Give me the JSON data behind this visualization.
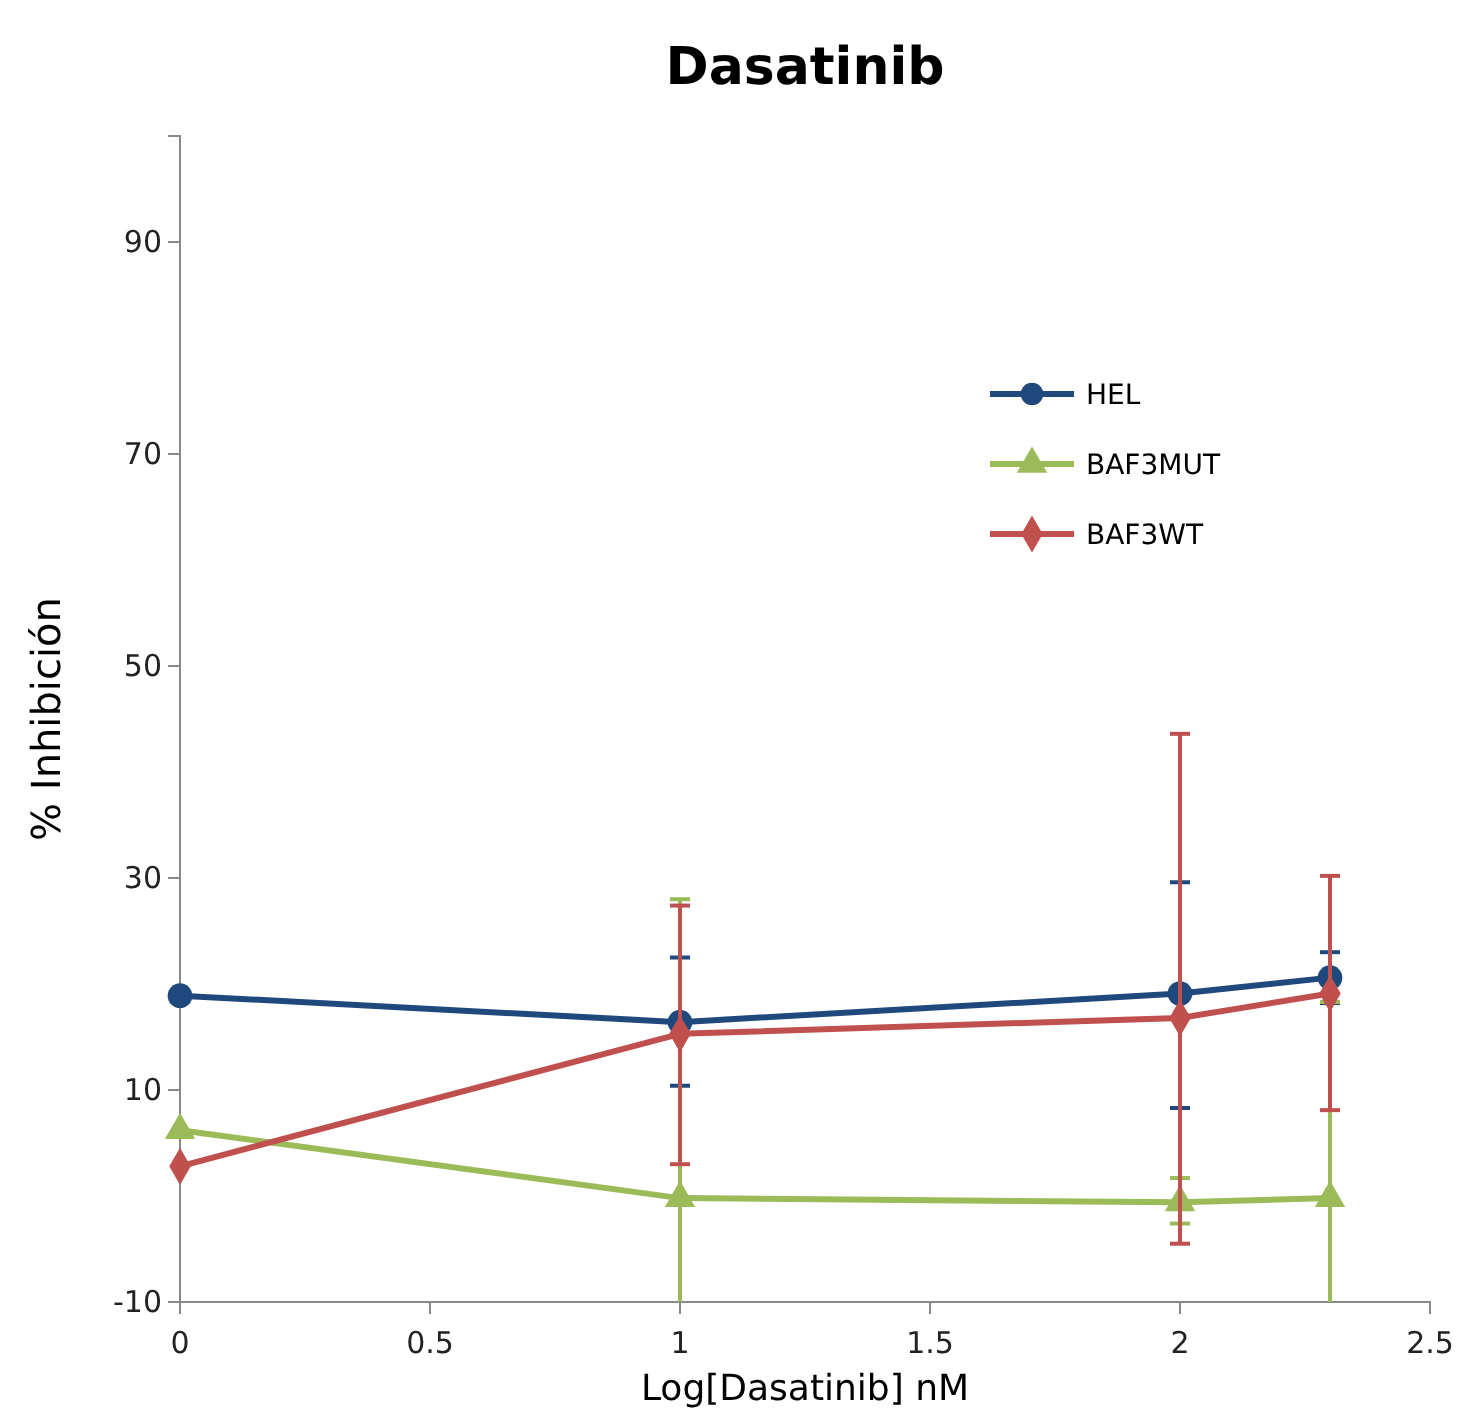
{
  "chart_data": {
    "type": "line",
    "title": "Dasatinib",
    "xlabel": "Log[Dasatinib]  nM",
    "ylabel": "% Inhibición",
    "x": [
      0,
      1,
      2,
      2.3
    ],
    "xlim": [
      0,
      2.5
    ],
    "xticks": [
      0,
      0.5,
      1,
      1.5,
      2,
      2.5
    ],
    "ylim": [
      -10,
      100
    ],
    "yticks": [
      -10,
      10,
      30,
      50,
      70,
      90
    ],
    "grid": false,
    "legend": "top right",
    "series": [
      {
        "name": "HEL",
        "color": "#1f497d",
        "marker": "circle",
        "values": [
          18.9,
          16.4,
          19.1,
          20.6
        ],
        "errors": [
          null,
          [
            10.4,
            22.5
          ],
          [
            8.3,
            29.6
          ],
          [
            18.2,
            23
          ]
        ]
      },
      {
        "name": "BAF3MUT",
        "color": "#9bbb59",
        "marker": "triangle",
        "values": [
          6.2,
          -0.2,
          -0.6,
          -0.2
        ],
        "errors": [
          null,
          [
            -10,
            28
          ],
          [
            -2.6,
            1.7
          ],
          [
            -10,
            18.3
          ]
        ]
      },
      {
        "name": "BAF3WT",
        "color": "#c0504d",
        "marker": "diamond",
        "values": [
          2.8,
          15.3,
          16.8,
          19.1
        ],
        "errors": [
          null,
          [
            3,
            27.4
          ],
          [
            -4.5,
            43.6
          ],
          [
            8.1,
            30.2
          ]
        ]
      }
    ]
  }
}
